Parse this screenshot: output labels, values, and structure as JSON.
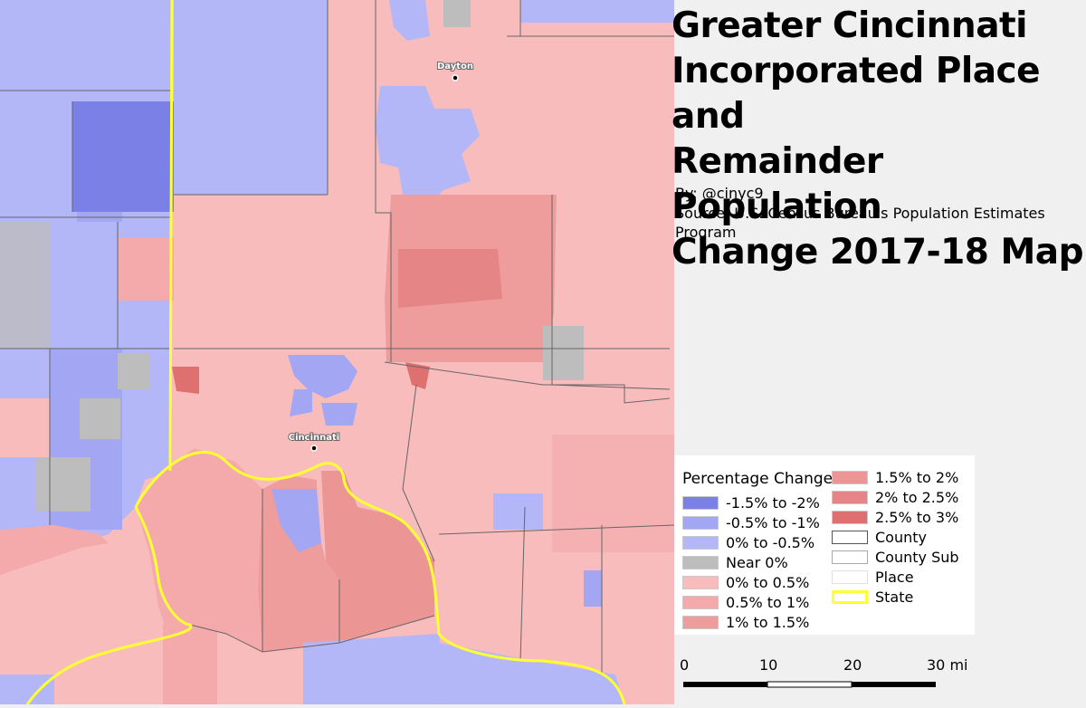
{
  "title": "Greater Cincinnati Incorporated Place and Remainder Population Change 2017-18 Map",
  "title_lines": [
    "Greater Cincinnati",
    "Incorporated Place and",
    "Remainder Population",
    "Change 2017-18 Map"
  ],
  "credits": {
    "by": "By: @cinyc9",
    "source_line1": "Source: U.S. Census Bureau's Population Estimates",
    "source_line2": "Program"
  },
  "cities": [
    {
      "name": "Dayton"
    },
    {
      "name": "Cincinnati"
    }
  ],
  "legend": {
    "heading": "Percentage Change",
    "items": [
      {
        "label": "-1.5% to -2%",
        "color": "#7b80e6"
      },
      {
        "label": "-0.5% to -1%",
        "color": "#a3a6f2"
      },
      {
        "label": "0% to -0.5%",
        "color": "#b3b6f7"
      },
      {
        "label": "Near 0%",
        "color": "#bdbdbd"
      },
      {
        "label": "0% to 0.5%",
        "color": "#f8bcbc"
      },
      {
        "label": "0.5% to 1%",
        "color": "#f4aaaa"
      },
      {
        "label": "1% to 1.5%",
        "color": "#ef9c9c"
      },
      {
        "label": "1.5% to 2%",
        "color": "#eb9595"
      },
      {
        "label": "2% to 2.5%",
        "color": "#e58585"
      },
      {
        "label": "2.5% to 3%",
        "color": "#df7070"
      },
      {
        "label": "County",
        "color": "#ffffff"
      },
      {
        "label": "County Sub",
        "color": "#ffffff"
      },
      {
        "label": "Place",
        "color": "#ffffff"
      },
      {
        "label": "State",
        "color": "#ffff00"
      }
    ]
  },
  "scale": {
    "labels": [
      "0",
      "10",
      "20",
      "30 mi"
    ]
  }
}
